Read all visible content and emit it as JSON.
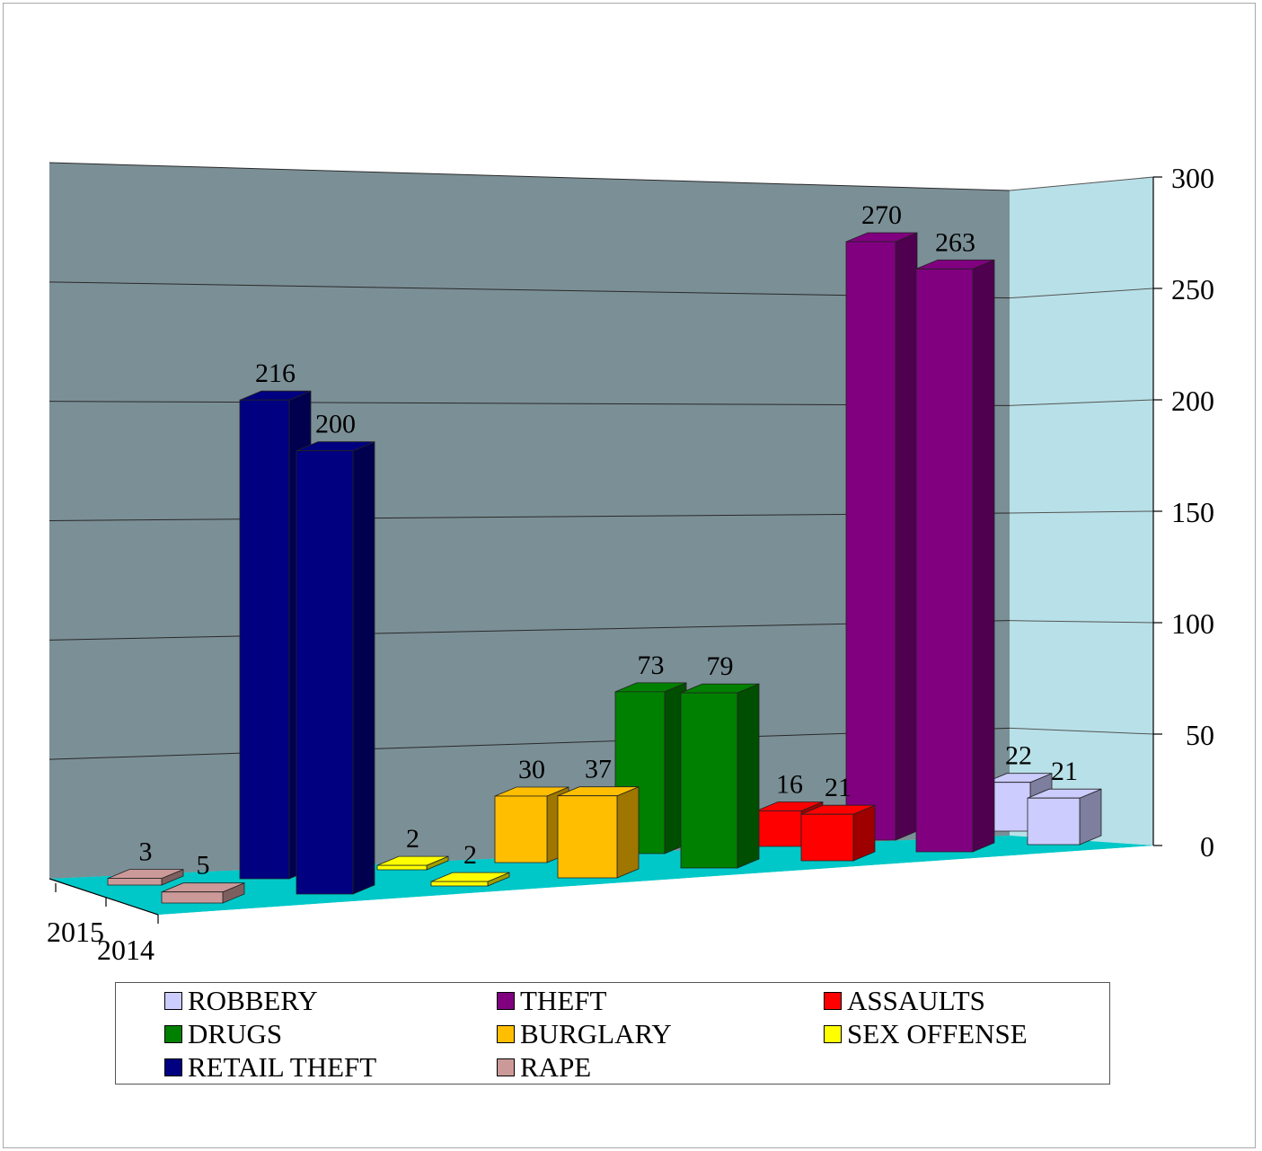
{
  "chart_data": {
    "type": "bar",
    "subtype": "3d-clustered-column",
    "title": "",
    "xlabel": "",
    "ylabel": "",
    "ylim": [
      0,
      300
    ],
    "yticks": [
      "0",
      "50",
      "100",
      "150",
      "200",
      "250",
      "300"
    ],
    "depth_labels": [
      "2015",
      "2014"
    ],
    "grid": true,
    "legend_position": "bottom",
    "series": [
      {
        "name": "RAPE",
        "color": "#cc9999",
        "values": {
          "2015": 3,
          "2014": 5
        }
      },
      {
        "name": "RETAIL THEFT",
        "color": "#000080",
        "values": {
          "2015": 216,
          "2014": 200
        }
      },
      {
        "name": "SEX OFFENSE",
        "color": "#ffff00",
        "values": {
          "2015": 2,
          "2014": 2
        }
      },
      {
        "name": "BURGLARY",
        "color": "#ffbf00",
        "values": {
          "2015": 30,
          "2014": 37
        }
      },
      {
        "name": "DRUGS",
        "color": "#008000",
        "values": {
          "2015": 73,
          "2014": 79
        }
      },
      {
        "name": "ASSAULTS",
        "color": "#ff0000",
        "values": {
          "2015": 16,
          "2014": 21
        }
      },
      {
        "name": "THEFT",
        "color": "#800080",
        "values": {
          "2015": 270,
          "2014": 263
        }
      },
      {
        "name": "ROBBERY",
        "color": "#ccccff",
        "values": {
          "2015": 22,
          "2014": 21
        }
      }
    ],
    "legend_order": [
      "ROBBERY",
      "THEFT",
      "ASSAULTS",
      "DRUGS",
      "BURGLARY",
      "SEX OFFENSE",
      "RETAIL THEFT",
      "RAPE"
    ],
    "colors": {
      "back_wall": "#7b8f96",
      "side_wall": "#b8e0e8",
      "floor": "#00c8c8"
    }
  }
}
